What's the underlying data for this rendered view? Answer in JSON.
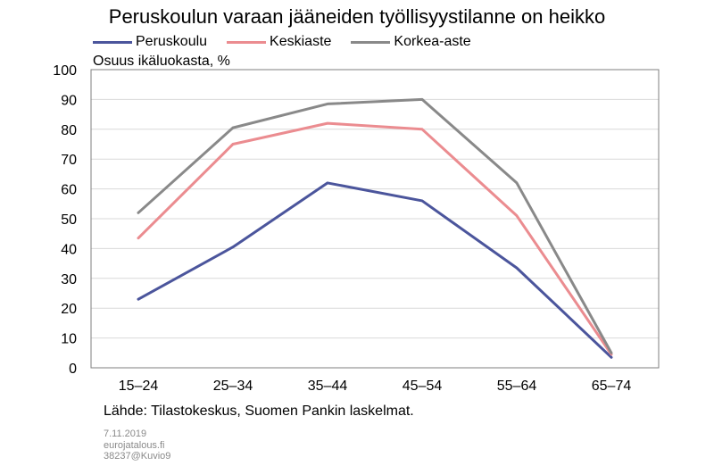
{
  "chart_data": {
    "type": "line",
    "title": "Peruskoulun varaan jääneiden työllisyystilanne on heikko",
    "ylabel": "Osuus ikäluokasta, %",
    "xlabel": "",
    "categories": [
      "15–24",
      "25–34",
      "35–44",
      "45–54",
      "55–64",
      "65–74"
    ],
    "ylim": [
      0,
      100
    ],
    "yticks": [
      0,
      10,
      20,
      30,
      40,
      50,
      60,
      70,
      80,
      90,
      100
    ],
    "grid": true,
    "legend_position": "top-left",
    "series": [
      {
        "name": "Peruskoulu",
        "color": "#4B559C",
        "values": [
          23,
          40.5,
          62,
          56,
          33.5,
          3.5
        ]
      },
      {
        "name": "Keskiaste",
        "color": "#EB8C90",
        "values": [
          43.5,
          75,
          82,
          80,
          51,
          4.5
        ]
      },
      {
        "name": "Korkea-aste",
        "color": "#898989",
        "values": [
          52,
          80.5,
          88.5,
          90,
          62,
          5
        ]
      }
    ]
  },
  "footer": {
    "source": "Lähde: Tilastokeskus, Suomen Pankin laskelmat.",
    "date": "7.11.2019",
    "site": "eurojatalous.fi",
    "code": "38237@Kuvio9"
  }
}
